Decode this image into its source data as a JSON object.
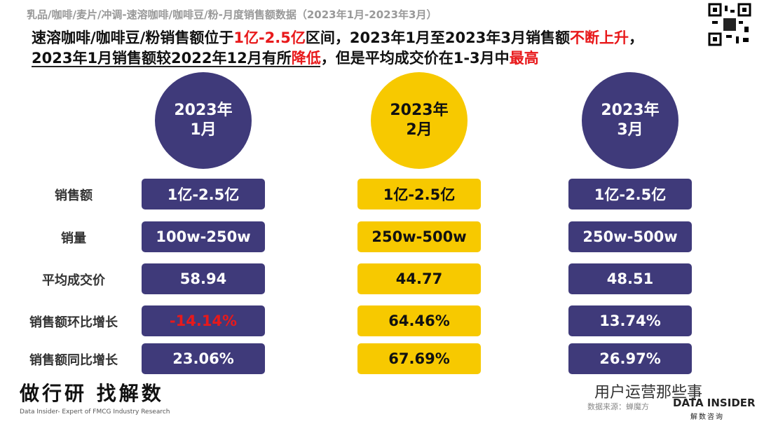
{
  "header": {
    "subtitle": "乳品/咖啡/麦片/冲调-速溶咖啡/咖啡豆/粉-月度销售额数据（2023年1月-2023年3月）",
    "headline": [
      [
        {
          "text": "速溶咖啡/咖啡豆/粉销售额位于"
        },
        {
          "text": "1亿-2.5亿",
          "color": "#e8191b"
        },
        {
          "text": "区间，2023年1月至2023年3月销售额"
        },
        {
          "text": "不断上升",
          "color": "#e8191b"
        },
        {
          "text": "，"
        }
      ],
      [
        {
          "text": "2023年1月销售额较2022年12月有所"
        },
        {
          "text": "降低",
          "color": "#e8191b"
        },
        {
          "text": "，但是平均成交价在1-3月中"
        },
        {
          "text": "最高",
          "color": "#e8191b"
        }
      ]
    ]
  },
  "table": {
    "row_labels": [
      "销售额",
      "销量",
      "平均成交价",
      "销售额环比增长",
      "销售额同比增长"
    ],
    "columns": [
      {
        "title": [
          "2023年",
          "1月"
        ],
        "color": "#3f3a7a",
        "cells": [
          "1亿-2.5亿",
          "100w-250w",
          "58.94",
          "-14.14%",
          "23.06%"
        ]
      },
      {
        "title": [
          "2023年",
          "2月"
        ],
        "color": "#f7c900",
        "cells": [
          "1亿-2.5亿",
          "250w-500w",
          "44.77",
          "64.46%",
          "67.69%"
        ]
      },
      {
        "title": [
          "2023年",
          "3月"
        ],
        "color": "#3f3a7a",
        "cells": [
          "1亿-2.5亿",
          "250w-500w",
          "48.51",
          "13.74%",
          "26.97%"
        ]
      }
    ]
  },
  "footer": {
    "slogan": "做行研 找解数",
    "tagline": "Data Insider- Expert of FMCG Industry Research",
    "watermark": "用户运营那些事",
    "source": "数据来源：蝉魔方",
    "brand": "DATA INSIDER",
    "brand_cn": "解数咨询"
  }
}
